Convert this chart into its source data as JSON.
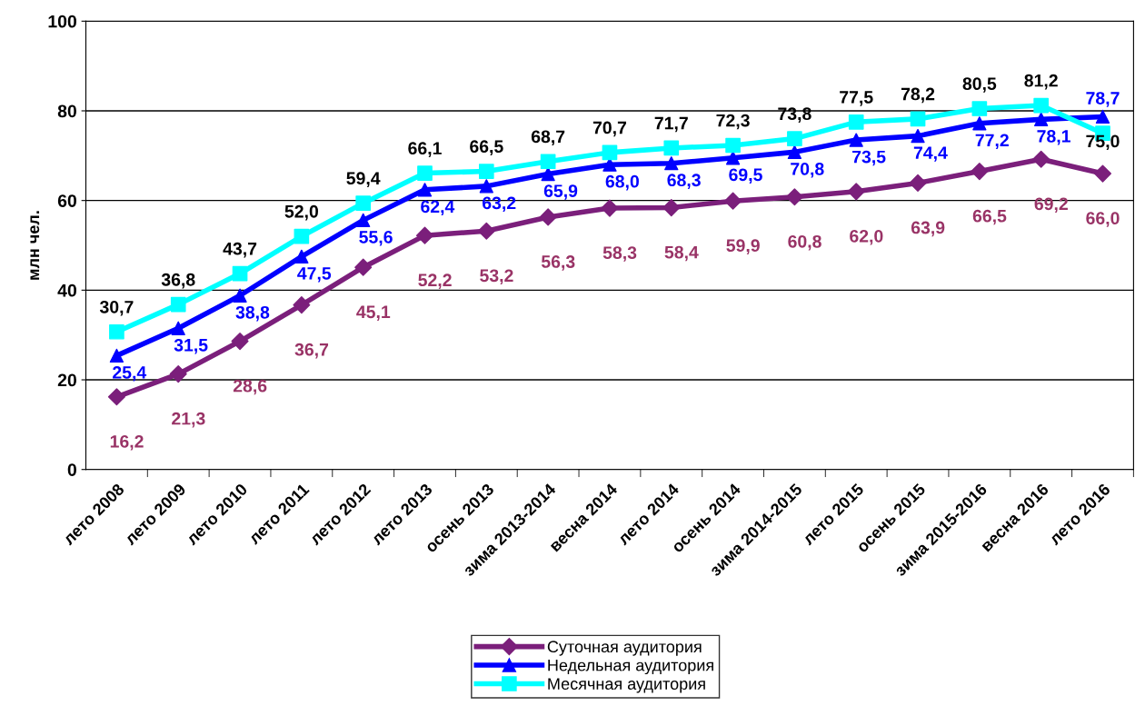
{
  "chart_data": {
    "type": "line",
    "ylabel": "млн чел.",
    "categories": [
      "лето 2008",
      "лето 2009",
      "лето 2010",
      "лето 2011",
      "лето 2012",
      "лето 2013",
      "осень 2013",
      "зима 2013-2014",
      "весна 2014",
      "лето 2014",
      "осень 2014",
      "зима 2014-2015",
      "лето 2015",
      "осень 2015",
      "зима 2015-2016",
      "весна 2016",
      "лето 2016"
    ],
    "series": [
      {
        "name": "Суточная аудитория",
        "color": "#7b1f7b",
        "marker": "diamond",
        "values": [
          16.2,
          21.3,
          28.6,
          36.7,
          45.1,
          52.2,
          53.2,
          56.3,
          58.3,
          58.4,
          59.9,
          60.8,
          62.0,
          63.9,
          66.5,
          69.2,
          66.0
        ],
        "value_labels": [
          "16,2",
          "21,3",
          "28,6",
          "36,7",
          "45,1",
          "52,2",
          "53,2",
          "56,3",
          "58,3",
          "58,4",
          "59,9",
          "60,8",
          "62,0",
          "63,9",
          "66,5",
          "69,2",
          "66,0"
        ]
      },
      {
        "name": "Недельная аудитория",
        "color": "#0000ff",
        "marker": "triangle",
        "values": [
          25.4,
          31.5,
          38.8,
          47.5,
          55.6,
          62.4,
          63.2,
          65.9,
          68.0,
          68.3,
          69.5,
          70.8,
          73.5,
          74.4,
          77.2,
          78.1,
          78.7
        ],
        "value_labels": [
          "25,4",
          "31,5",
          "38,8",
          "47,5",
          "55,6",
          "62,4",
          "63,2",
          "65,9",
          "68,0",
          "68,3",
          "69,5",
          "70,8",
          "73,5",
          "74,4",
          "77,2",
          "78,1",
          "78,7"
        ]
      },
      {
        "name": "Месячная аудитория",
        "color": "#00ffff",
        "marker": "square",
        "values": [
          30.7,
          36.8,
          43.7,
          52.0,
          59.4,
          66.1,
          66.5,
          68.7,
          70.7,
          71.7,
          72.3,
          73.8,
          77.5,
          78.2,
          80.5,
          81.2,
          75.0
        ],
        "value_labels": [
          "30,7",
          "36,8",
          "43,7",
          "52,0",
          "59,4",
          "66,1",
          "66,5",
          "68,7",
          "70,7",
          "71,7",
          "72,3",
          "73,8",
          "77,5",
          "78,2",
          "80,5",
          "81,2",
          "75,0"
        ]
      }
    ],
    "ylim": [
      0,
      100
    ],
    "yticks": [
      0,
      20,
      40,
      60,
      80,
      100
    ],
    "grid": "y",
    "legend": "bottom"
  }
}
